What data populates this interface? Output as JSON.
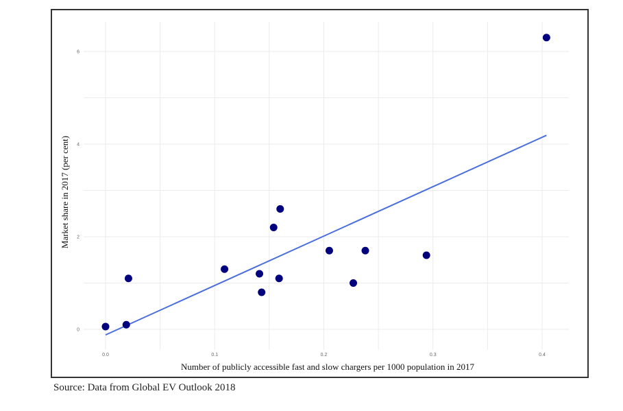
{
  "chart_data": {
    "type": "scatter",
    "title": "",
    "xlabel": "Number of publicly accessible fast and slow chargers per 1000 population in 2017",
    "ylabel": "Market share in 2017 (per cent)",
    "xlim": [
      -0.02,
      0.425
    ],
    "ylim": [
      -0.45,
      6.6
    ],
    "xticks": [
      "0.0",
      "0.1",
      "0.2",
      "0.3",
      "0.4"
    ],
    "yticks": [
      "0",
      "2",
      "4",
      "6"
    ],
    "grid": true,
    "points": [
      {
        "x": 0.0,
        "y": 0.06
      },
      {
        "x": 0.019,
        "y": 0.1
      },
      {
        "x": 0.021,
        "y": 1.1
      },
      {
        "x": 0.109,
        "y": 1.3
      },
      {
        "x": 0.141,
        "y": 1.2
      },
      {
        "x": 0.143,
        "y": 0.8
      },
      {
        "x": 0.154,
        "y": 2.2
      },
      {
        "x": 0.159,
        "y": 1.1
      },
      {
        "x": 0.16,
        "y": 2.6
      },
      {
        "x": 0.205,
        "y": 1.7
      },
      {
        "x": 0.227,
        "y": 1.0
      },
      {
        "x": 0.238,
        "y": 1.7
      },
      {
        "x": 0.294,
        "y": 1.6
      },
      {
        "x": 0.404,
        "y": 6.3
      }
    ],
    "trendline": {
      "x": [
        0.0,
        0.404
      ],
      "y": [
        -0.12,
        4.19
      ]
    },
    "colors": {
      "points": "#00007f",
      "trendline": "#4a6fdc",
      "grid": "#ebebeb"
    }
  },
  "source": "Source: Data from Global EV Outlook 2018"
}
